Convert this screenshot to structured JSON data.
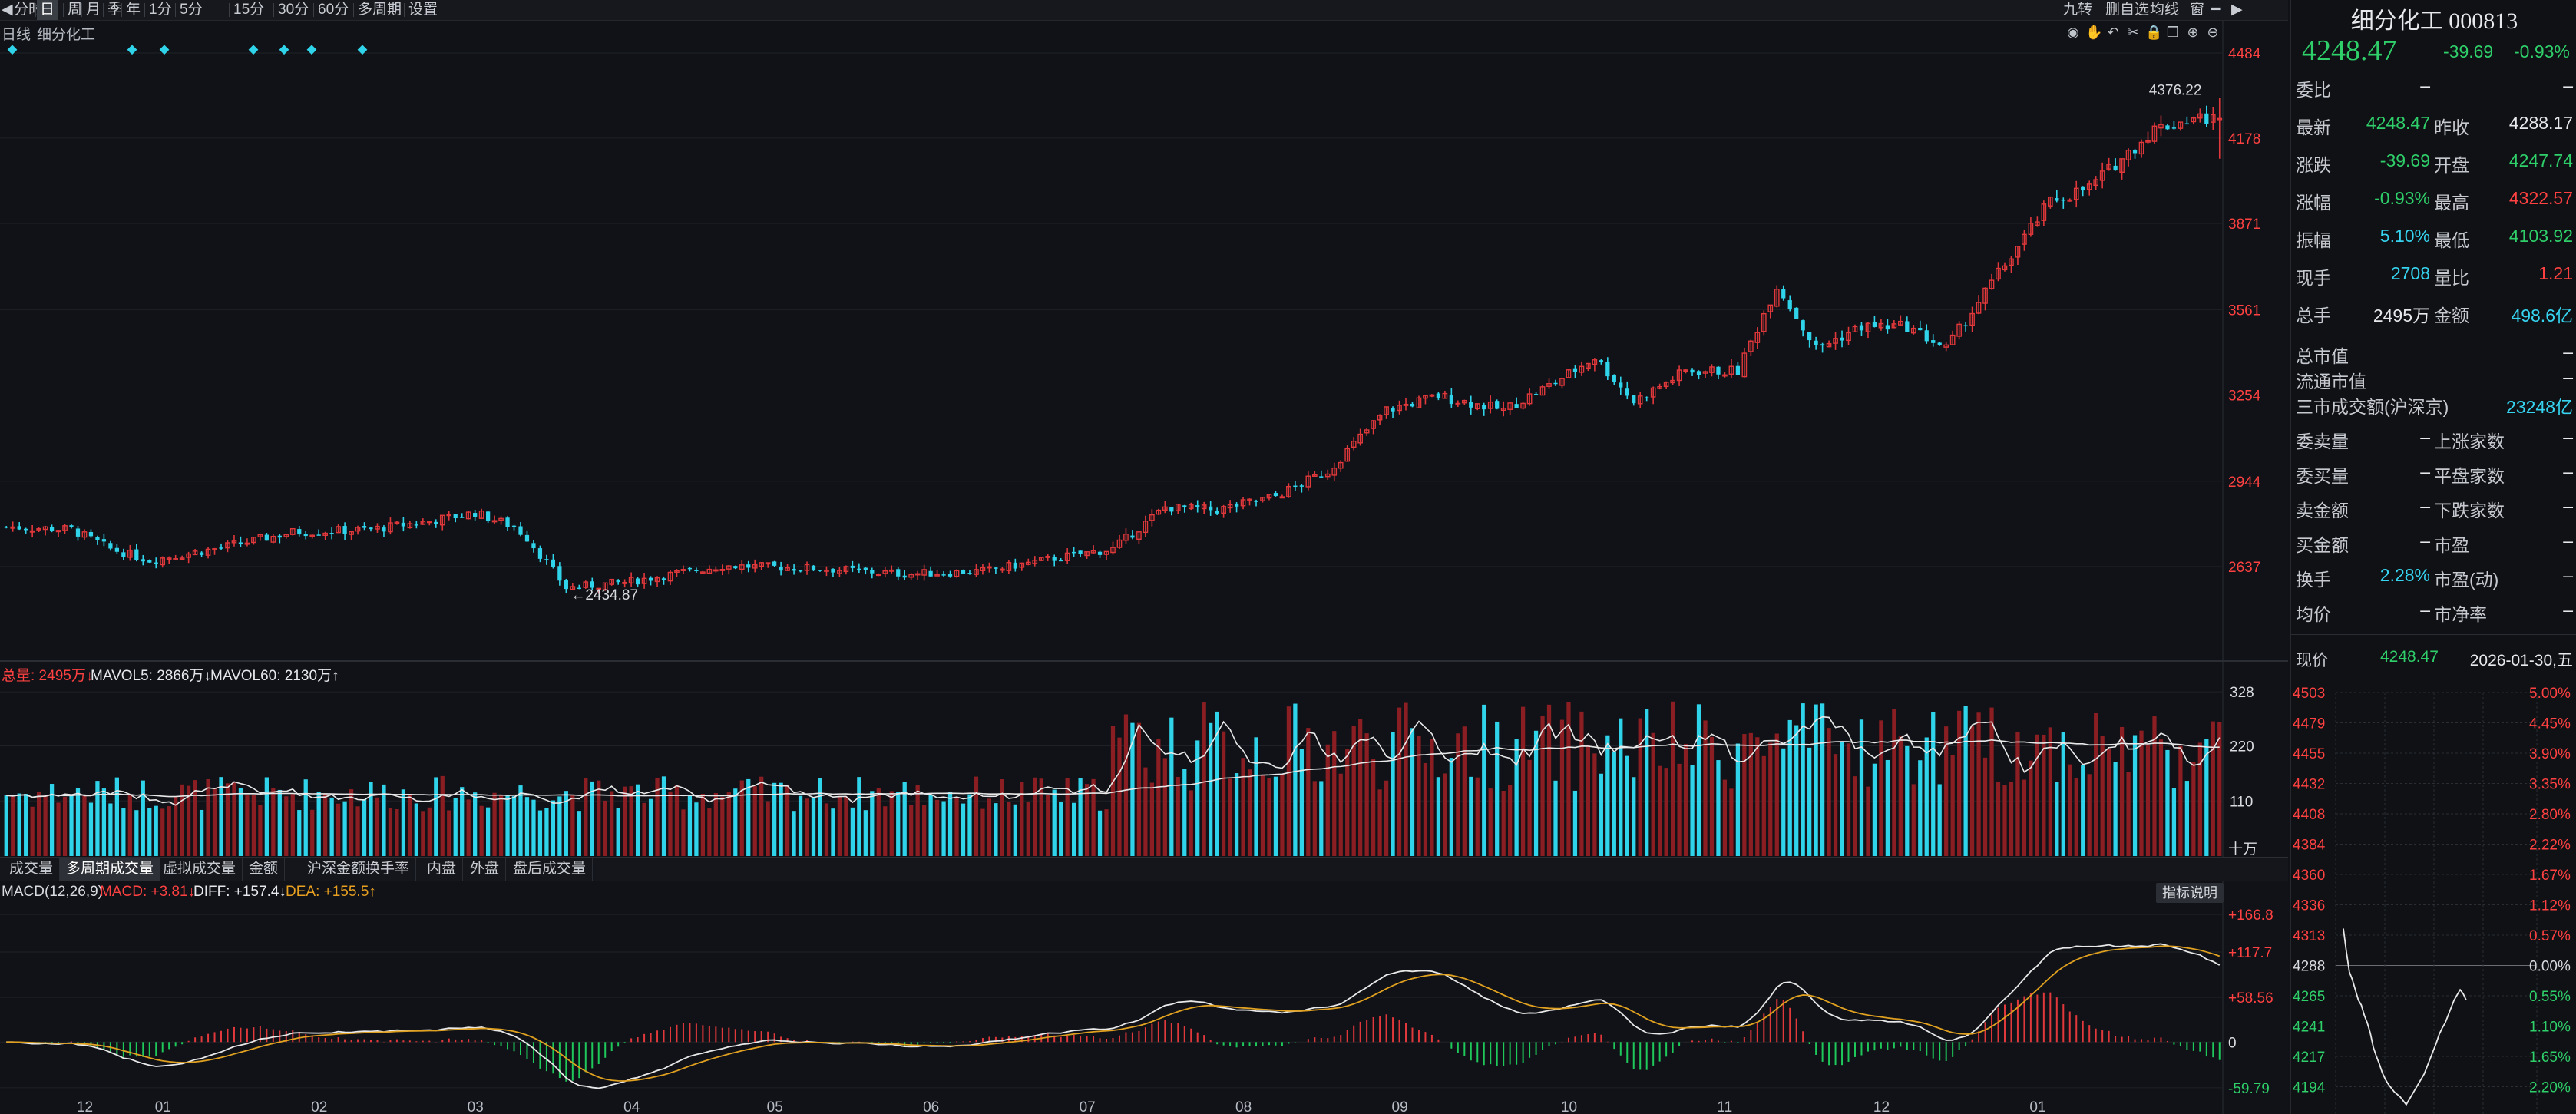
{
  "toolbar": {
    "left_items": [
      "分时",
      "日",
      "周",
      "月",
      "季",
      "年",
      "1分",
      "5分",
      "15分",
      "30分",
      "60分",
      "多周期",
      "设置"
    ],
    "active_item": "日",
    "right_items": [
      "九转",
      "删自选",
      "均线",
      "窗"
    ]
  },
  "subtitle": {
    "period": "日线",
    "name": "细分化工"
  },
  "price_axis": [
    "4484",
    "4178",
    "3871",
    "3561",
    "3254",
    "2944",
    "2637"
  ],
  "annotations": {
    "high_label": "4376.22",
    "low_label": "←2434.87"
  },
  "volume_legend": {
    "total_label": "总量: 2495万↓",
    "mavol5_label": "MAVOL5: 2866万↓",
    "mavol60_label": "MAVOL60: 2130万↑"
  },
  "volume_axis": [
    "328",
    "220",
    "110"
  ],
  "volume_unit": "十万",
  "tabs": [
    "成交量",
    "多周期成交量",
    "虚拟成交量",
    "金额",
    "沪深金额",
    "换手率",
    "内盘",
    "外盘",
    "盘后成交量"
  ],
  "active_tab": "多周期成交量",
  "macd_legend": {
    "name": "MACD(12,26,9)",
    "macd": "MACD: +3.81↓",
    "diff": "DIFF: +157.4↓",
    "dea": "DEA: +155.5↑"
  },
  "macd_axis": [
    "+166.8",
    "+117.7",
    "+58.56",
    "0",
    "-59.79"
  ],
  "indicator_button": "指标说明",
  "month_labels": [
    "12",
    "01",
    "02",
    "03",
    "04",
    "05",
    "06",
    "07",
    "08",
    "09",
    "10",
    "11",
    "12",
    "01"
  ],
  "colors": {
    "up": "#e0383b",
    "down": "#30d4ea",
    "ma5": "#e8e8e8",
    "ma60": "#e8e8e8",
    "dea": "#e0a020",
    "diff": "#e8e8e8",
    "bg": "#101217",
    "grid": "#1e2127"
  },
  "chart_data": {
    "type": "candlestick",
    "ylim": [
      2300,
      4520
    ],
    "volume_ylim": [
      0,
      345
    ],
    "macd_ylim": [
      -75,
      180
    ],
    "months": [
      "12",
      "01",
      "02",
      "03",
      "04",
      "05",
      "06",
      "07",
      "08",
      "09",
      "10",
      "11",
      "12",
      "01"
    ],
    "close_key_points": [
      [
        0,
        2780
      ],
      [
        10,
        2770
      ],
      [
        16,
        2700
      ],
      [
        22,
        2660
      ],
      [
        32,
        2700
      ],
      [
        44,
        2760
      ],
      [
        56,
        2770
      ],
      [
        65,
        2800
      ],
      [
        72,
        2830
      ],
      [
        78,
        2780
      ],
      [
        80,
        2740
      ],
      [
        86,
        2560
      ],
      [
        95,
        2580
      ],
      [
        110,
        2640
      ],
      [
        125,
        2630
      ],
      [
        138,
        2610
      ],
      [
        150,
        2620
      ],
      [
        162,
        2670
      ],
      [
        170,
        2700
      ],
      [
        178,
        2850
      ],
      [
        186,
        2840
      ],
      [
        195,
        2890
      ],
      [
        203,
        2980
      ],
      [
        212,
        3200
      ],
      [
        220,
        3250
      ],
      [
        230,
        3200
      ],
      [
        238,
        3300
      ],
      [
        244,
        3390
      ],
      [
        250,
        3230
      ],
      [
        258,
        3340
      ],
      [
        266,
        3340
      ],
      [
        272,
        3650
      ],
      [
        278,
        3420
      ],
      [
        285,
        3500
      ],
      [
        292,
        3500
      ],
      [
        298,
        3420
      ],
      [
        306,
        3690
      ],
      [
        314,
        3950
      ],
      [
        320,
        4000
      ],
      [
        330,
        4210
      ],
      [
        336,
        4250
      ],
      [
        340,
        4248
      ]
    ],
    "last": {
      "open": 4247.74,
      "high": 4322.57,
      "low": 4103.92,
      "close": 4248.47
    }
  },
  "panel": {
    "title": "细分化工 000813",
    "price": "4248.47",
    "change": "-39.69",
    "change_pct": "-0.93%",
    "rows": [
      {
        "l": "委比",
        "v": "–",
        "l2": "",
        "v2": "–"
      },
      {
        "l": "最新",
        "v": "4248.47",
        "l2": "昨收",
        "v2": "4288.17"
      },
      {
        "l": "涨跌",
        "v": "-39.69",
        "l2": "开盘",
        "v2": "4247.74"
      },
      {
        "l": "涨幅",
        "v": "-0.93%",
        "l2": "最高",
        "v2": "4322.57"
      },
      {
        "l": "振幅",
        "v": "5.10%",
        "l2": "最低",
        "v2": "4103.92"
      },
      {
        "l": "现手",
        "v": "2708",
        "l2": "量比",
        "v2": "1.21"
      },
      {
        "l": "总手",
        "v": "2495万",
        "l2": "金额",
        "v2": "498.6亿"
      }
    ],
    "rows2": [
      {
        "l": "总市值",
        "v": "–"
      },
      {
        "l": "流通市值",
        "v": "–"
      },
      {
        "l": "三市成交额(沪深京)",
        "v": "23248亿"
      }
    ],
    "rows3": [
      {
        "l": "委卖量",
        "v": "–",
        "l2": "上涨家数",
        "v2": "–"
      },
      {
        "l": "委买量",
        "v": "–",
        "l2": "平盘家数",
        "v2": "–"
      },
      {
        "l": "卖金额",
        "v": "–",
        "l2": "下跌家数",
        "v2": "–"
      },
      {
        "l": "买金额",
        "v": "–",
        "l2": "市盈",
        "v2": "–"
      },
      {
        "l": "换手",
        "v": "2.28%",
        "l2": "市盈(动)",
        "v2": "–"
      },
      {
        "l": "均价",
        "v": "–",
        "l2": "市净率",
        "v2": "–"
      }
    ],
    "quote": {
      "l": "现价",
      "v": "4248.47",
      "date": "2026-01-30,五"
    },
    "mini_left": [
      "4503",
      "4479",
      "4455",
      "4432",
      "4408",
      "4384",
      "4360",
      "4336",
      "4313",
      "4288",
      "4265",
      "4241",
      "4217",
      "4194"
    ],
    "mini_right": [
      "5.00%",
      "4.45%",
      "3.90%",
      "3.35%",
      "2.80%",
      "2.22%",
      "1.67%",
      "1.12%",
      "0.57%",
      "0.00%",
      "0.55%",
      "1.10%",
      "1.65%",
      "2.20%"
    ]
  }
}
